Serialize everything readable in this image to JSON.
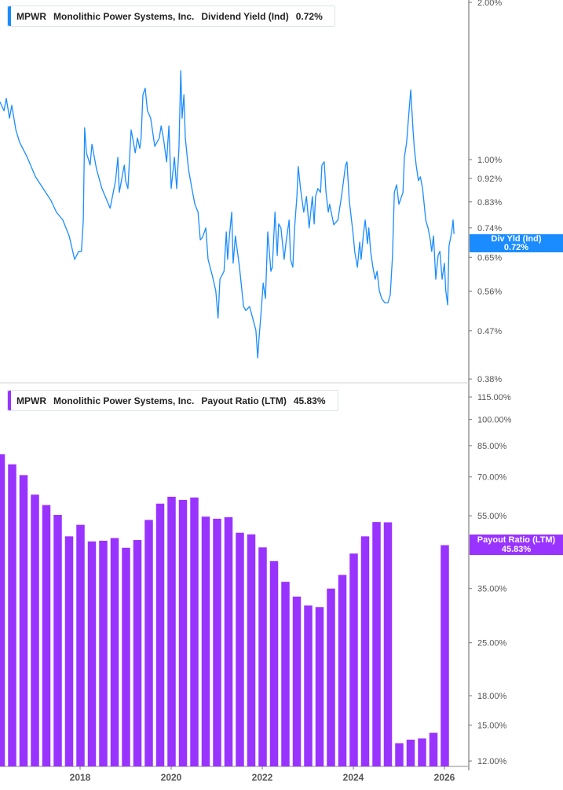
{
  "colors": {
    "yield": "#1a8cff",
    "payout": "#9933ff",
    "axis": "#b0b0b0",
    "tick_text": "#555555"
  },
  "top_legend": {
    "ticker": "MPWR",
    "company": "Monolithic Power Systems, Inc.",
    "metric": "Dividend Yield (Ind)",
    "value": "0.72%"
  },
  "bottom_legend": {
    "ticker": "MPWR",
    "company": "Monolithic Power Systems, Inc.",
    "metric": "Payout Ratio (LTM)",
    "value": "45.83%"
  },
  "top_tag": {
    "label": "Div Yld (Ind)",
    "value": "0.72%"
  },
  "bottom_tag": {
    "label": "Payout Ratio (LTM)",
    "value": "45.83%"
  },
  "chart_data": [
    {
      "type": "line",
      "scale": "log",
      "xlim": [
        2016.24,
        2026.55
      ],
      "ylim": [
        0.38,
        2.0
      ],
      "y_ticks": [
        "2.00%",
        "1.00%",
        "0.92%",
        "0.83%",
        "0.74%",
        "0.65%",
        "0.56%",
        "0.47%",
        "0.38%"
      ],
      "y_tick_values": [
        2.0,
        1.0,
        0.92,
        0.83,
        0.74,
        0.65,
        0.56,
        0.47,
        0.38
      ],
      "points": [
        [
          2016.24,
          1.29
        ],
        [
          2016.33,
          1.24
        ],
        [
          2016.38,
          1.31
        ],
        [
          2016.45,
          1.2
        ],
        [
          2016.5,
          1.27
        ],
        [
          2016.59,
          1.14
        ],
        [
          2016.67,
          1.08
        ],
        [
          2016.84,
          1.01
        ],
        [
          2017.02,
          0.927
        ],
        [
          2017.19,
          0.88
        ],
        [
          2017.36,
          0.835
        ],
        [
          2017.48,
          0.793
        ],
        [
          2017.62,
          0.766
        ],
        [
          2017.76,
          0.714
        ],
        [
          2017.88,
          0.644
        ],
        [
          2017.97,
          0.667
        ],
        [
          2018.03,
          0.667
        ],
        [
          2018.07,
          0.766
        ],
        [
          2018.1,
          1.15
        ],
        [
          2018.14,
          1.03
        ],
        [
          2018.22,
          0.976
        ],
        [
          2018.26,
          1.07
        ],
        [
          2018.36,
          0.959
        ],
        [
          2018.48,
          0.88
        ],
        [
          2018.66,
          0.807
        ],
        [
          2018.71,
          0.85
        ],
        [
          2018.78,
          0.911
        ],
        [
          2018.83,
          1.01
        ],
        [
          2018.86,
          0.865
        ],
        [
          2018.97,
          0.976
        ],
        [
          2019.0,
          0.911
        ],
        [
          2019.05,
          0.88
        ],
        [
          2019.12,
          1.14
        ],
        [
          2019.17,
          1.08
        ],
        [
          2019.21,
          1.03
        ],
        [
          2019.26,
          1.1
        ],
        [
          2019.31,
          1.05
        ],
        [
          2019.34,
          1.1
        ],
        [
          2019.38,
          1.33
        ],
        [
          2019.43,
          1.37
        ],
        [
          2019.48,
          1.24
        ],
        [
          2019.55,
          1.2
        ],
        [
          2019.64,
          1.06
        ],
        [
          2019.74,
          1.1
        ],
        [
          2019.78,
          1.16
        ],
        [
          2019.83,
          1.1
        ],
        [
          2019.9,
          0.99
        ],
        [
          2019.95,
          1.16
        ],
        [
          2020.0,
          0.88
        ],
        [
          2020.07,
          1.01
        ],
        [
          2020.12,
          0.88
        ],
        [
          2020.17,
          1.05
        ],
        [
          2020.21,
          1.48
        ],
        [
          2020.24,
          1.2
        ],
        [
          2020.28,
          1.33
        ],
        [
          2020.31,
          1.1
        ],
        [
          2020.38,
          0.959
        ],
        [
          2020.47,
          0.865
        ],
        [
          2020.52,
          0.821
        ],
        [
          2020.59,
          0.793
        ],
        [
          2020.64,
          0.702
        ],
        [
          2020.69,
          0.71
        ],
        [
          2020.76,
          0.74
        ],
        [
          2020.81,
          0.644
        ],
        [
          2020.9,
          0.601
        ],
        [
          2020.98,
          0.561
        ],
        [
          2021.03,
          0.497
        ],
        [
          2021.07,
          0.59
        ],
        [
          2021.16,
          0.611
        ],
        [
          2021.21,
          0.727
        ],
        [
          2021.24,
          0.644
        ],
        [
          2021.28,
          0.714
        ],
        [
          2021.33,
          0.793
        ],
        [
          2021.36,
          0.633
        ],
        [
          2021.41,
          0.714
        ],
        [
          2021.5,
          0.622
        ],
        [
          2021.59,
          0.523
        ],
        [
          2021.64,
          0.514
        ],
        [
          2021.72,
          0.523
        ],
        [
          2021.79,
          0.497
        ],
        [
          2021.86,
          0.471
        ],
        [
          2021.9,
          0.417
        ],
        [
          2021.93,
          0.455
        ],
        [
          2021.97,
          0.505
        ],
        [
          2022.02,
          0.58
        ],
        [
          2022.07,
          0.542
        ],
        [
          2022.12,
          0.727
        ],
        [
          2022.19,
          0.611
        ],
        [
          2022.22,
          0.622
        ],
        [
          2022.28,
          0.793
        ],
        [
          2022.33,
          0.655
        ],
        [
          2022.36,
          0.753
        ],
        [
          2022.41,
          0.74
        ],
        [
          2022.48,
          0.644
        ],
        [
          2022.53,
          0.702
        ],
        [
          2022.59,
          0.766
        ],
        [
          2022.62,
          0.644
        ],
        [
          2022.67,
          0.622
        ],
        [
          2022.71,
          0.74
        ],
        [
          2022.76,
          0.85
        ],
        [
          2022.79,
          0.97
        ],
        [
          2022.84,
          0.88
        ],
        [
          2022.91,
          0.793
        ],
        [
          2022.97,
          0.85
        ],
        [
          2023.03,
          0.74
        ],
        [
          2023.1,
          0.85
        ],
        [
          2023.14,
          0.753
        ],
        [
          2023.17,
          0.85
        ],
        [
          2023.22,
          0.88
        ],
        [
          2023.28,
          0.865
        ],
        [
          2023.31,
          0.976
        ],
        [
          2023.36,
          0.99
        ],
        [
          2023.4,
          0.865
        ],
        [
          2023.45,
          0.793
        ],
        [
          2023.48,
          0.821
        ],
        [
          2023.57,
          0.75
        ],
        [
          2023.66,
          0.766
        ],
        [
          2023.74,
          0.85
        ],
        [
          2023.83,
          0.976
        ],
        [
          2023.86,
          0.99
        ],
        [
          2023.91,
          0.835
        ],
        [
          2024.0,
          0.714
        ],
        [
          2024.03,
          0.667
        ],
        [
          2024.09,
          0.622
        ],
        [
          2024.14,
          0.695
        ],
        [
          2024.17,
          0.644
        ],
        [
          2024.22,
          0.72
        ],
        [
          2024.26,
          0.766
        ],
        [
          2024.31,
          0.69
        ],
        [
          2024.34,
          0.74
        ],
        [
          2024.38,
          0.667
        ],
        [
          2024.43,
          0.622
        ],
        [
          2024.48,
          0.59
        ],
        [
          2024.52,
          0.611
        ],
        [
          2024.57,
          0.561
        ],
        [
          2024.62,
          0.542
        ],
        [
          2024.69,
          0.532
        ],
        [
          2024.76,
          0.532
        ],
        [
          2024.81,
          0.551
        ],
        [
          2024.86,
          0.655
        ],
        [
          2024.9,
          0.865
        ],
        [
          2024.95,
          0.895
        ],
        [
          2025.0,
          0.821
        ],
        [
          2025.03,
          0.835
        ],
        [
          2025.09,
          0.865
        ],
        [
          2025.12,
          1.01
        ],
        [
          2025.17,
          1.08
        ],
        [
          2025.21,
          1.2
        ],
        [
          2025.26,
          1.36
        ],
        [
          2025.31,
          1.14
        ],
        [
          2025.34,
          1.05
        ],
        [
          2025.38,
          0.976
        ],
        [
          2025.43,
          0.911
        ],
        [
          2025.47,
          0.927
        ],
        [
          2025.52,
          0.88
        ],
        [
          2025.59,
          0.766
        ],
        [
          2025.64,
          0.74
        ],
        [
          2025.69,
          0.702
        ],
        [
          2025.72,
          0.667
        ],
        [
          2025.76,
          0.714
        ],
        [
          2025.81,
          0.59
        ],
        [
          2025.86,
          0.655
        ],
        [
          2025.9,
          0.667
        ],
        [
          2025.95,
          0.59
        ],
        [
          2026.0,
          0.633
        ],
        [
          2026.03,
          0.561
        ],
        [
          2026.07,
          0.527
        ],
        [
          2026.1,
          0.683
        ],
        [
          2026.16,
          0.727
        ],
        [
          2026.19,
          0.766
        ],
        [
          2026.21,
          0.72
        ]
      ]
    },
    {
      "type": "bar",
      "scale": "log",
      "ylim": [
        12,
        115
      ],
      "y_ticks": [
        "115.00%",
        "100.00%",
        "85.00%",
        "70.00%",
        "55.00%",
        "35.00%",
        "25.00%",
        "18.00%",
        "15.00%",
        "12.00%"
      ],
      "y_tick_values": [
        115,
        100,
        85,
        70,
        55,
        35,
        25,
        18,
        15,
        12
      ],
      "x_ticks": [
        "2018",
        "2020",
        "2022",
        "2024",
        "2026"
      ],
      "x_tick_values": [
        2018,
        2020,
        2022,
        2024,
        2026
      ],
      "categories": [
        "2016-04",
        "2016-07",
        "2016-10",
        "2017-01",
        "2017-04",
        "2017-07",
        "2017-10",
        "2018-01",
        "2018-04",
        "2018-07",
        "2018-10",
        "2019-01",
        "2019-04",
        "2019-07",
        "2019-10",
        "2020-01",
        "2020-04",
        "2020-07",
        "2020-10",
        "2021-01",
        "2021-04",
        "2021-07",
        "2021-10",
        "2022-01",
        "2022-04",
        "2022-07",
        "2022-10",
        "2023-01",
        "2023-04",
        "2023-07",
        "2023-10",
        "2024-01",
        "2024-04",
        "2024-07",
        "2024-10",
        "2025-01",
        "2025-04",
        "2025-07",
        "2025-10",
        "2026-01"
      ],
      "values": [
        80.6,
        75.7,
        70.8,
        62.7,
        58.8,
        55.3,
        48.4,
        52.0,
        46.9,
        47.1,
        47.9,
        45.1,
        47.3,
        53.6,
        59.3,
        61.9,
        60.7,
        61.6,
        54.7,
        54.0,
        54.5,
        49.5,
        49.0,
        45.2,
        41.5,
        36.5,
        33.3,
        31.5,
        31.2,
        35.0,
        38.1,
        43.5,
        48.4,
        52.9,
        52.8,
        13.4,
        13.7,
        13.8,
        14.3,
        45.83
      ]
    }
  ]
}
